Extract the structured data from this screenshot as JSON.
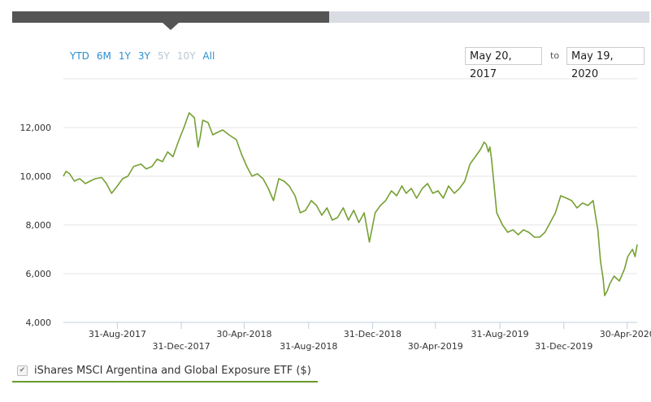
{
  "range_buttons": [
    {
      "label": "YTD",
      "enabled": true
    },
    {
      "label": "6M",
      "enabled": true
    },
    {
      "label": "1Y",
      "enabled": true
    },
    {
      "label": "3Y",
      "enabled": true
    },
    {
      "label": "5Y",
      "enabled": false
    },
    {
      "label": "10Y",
      "enabled": false
    },
    {
      "label": "All",
      "enabled": true
    }
  ],
  "date_range": {
    "from": "May 20, 2017",
    "to_label": "to",
    "to": "May 19, 2020"
  },
  "legend": {
    "label": "iShares MSCI Argentina and Global Exposure ETF ($)",
    "checked": true
  },
  "colors": {
    "line": "#76a034",
    "grid": "#e6e6e6",
    "axis": "#c0d0e0",
    "active_tab": "#555555",
    "inactive_tab": "#d9dce3"
  },
  "chart_data": {
    "type": "line",
    "title": "",
    "xlabel": "",
    "ylabel": "",
    "ylim": [
      4000,
      13000
    ],
    "y_ticks": [
      {
        "value": 4000,
        "label": "4,000"
      },
      {
        "value": 6000,
        "label": "6,000"
      },
      {
        "value": 8000,
        "label": "8,000"
      },
      {
        "value": 10000,
        "label": "10,000"
      },
      {
        "value": 12000,
        "label": "12,000"
      }
    ],
    "x_range": [
      "2017-05-20",
      "2020-05-19"
    ],
    "x_ticks": [
      {
        "date": "2017-08-31",
        "label": "31-Aug-2017",
        "row": 1
      },
      {
        "date": "2017-12-31",
        "label": "31-Dec-2017",
        "row": 2
      },
      {
        "date": "2018-04-30",
        "label": "30-Apr-2018",
        "row": 1
      },
      {
        "date": "2018-08-31",
        "label": "31-Aug-2018",
        "row": 2
      },
      {
        "date": "2018-12-31",
        "label": "31-Dec-2018",
        "row": 1
      },
      {
        "date": "2019-04-30",
        "label": "30-Apr-2019",
        "row": 2
      },
      {
        "date": "2019-08-31",
        "label": "31-Aug-2019",
        "row": 1
      },
      {
        "date": "2019-12-31",
        "label": "31-Dec-2019",
        "row": 2
      },
      {
        "date": "2020-04-30",
        "label": "30-Apr-2020",
        "row": 1
      }
    ],
    "grid": true,
    "legend_position": "bottom-left",
    "series": [
      {
        "x": [
          "2017-05-20",
          "2017-05-25",
          "2017-06-01",
          "2017-06-10",
          "2017-06-20",
          "2017-07-01",
          "2017-07-10",
          "2017-07-20",
          "2017-08-01",
          "2017-08-10",
          "2017-08-20",
          "2017-08-31",
          "2017-09-10",
          "2017-09-20",
          "2017-10-01",
          "2017-10-15",
          "2017-10-25",
          "2017-11-05",
          "2017-11-15",
          "2017-11-25",
          "2017-12-05",
          "2017-12-15",
          "2017-12-25",
          "2018-01-05",
          "2018-01-15",
          "2018-01-25",
          "2018-02-01",
          "2018-02-05",
          "2018-02-10",
          "2018-02-20",
          "2018-03-01",
          "2018-03-10",
          "2018-03-20",
          "2018-04-01",
          "2018-04-15",
          "2018-04-25",
          "2018-05-05",
          "2018-05-15",
          "2018-05-25",
          "2018-06-05",
          "2018-06-15",
          "2018-06-25",
          "2018-07-05",
          "2018-07-15",
          "2018-07-25",
          "2018-08-05",
          "2018-08-15",
          "2018-08-25",
          "2018-09-05",
          "2018-09-15",
          "2018-09-25",
          "2018-10-05",
          "2018-10-15",
          "2018-10-25",
          "2018-11-05",
          "2018-11-15",
          "2018-11-25",
          "2018-12-05",
          "2018-12-15",
          "2018-12-25",
          "2019-01-05",
          "2019-01-15",
          "2019-01-25",
          "2019-02-05",
          "2019-02-15",
          "2019-02-25",
          "2019-03-05",
          "2019-03-15",
          "2019-03-25",
          "2019-04-05",
          "2019-04-15",
          "2019-04-25",
          "2019-05-05",
          "2019-05-15",
          "2019-05-25",
          "2019-06-05",
          "2019-06-15",
          "2019-06-25",
          "2019-07-05",
          "2019-07-15",
          "2019-07-25",
          "2019-08-01",
          "2019-08-05",
          "2019-08-09",
          "2019-08-12",
          "2019-08-15",
          "2019-08-25",
          "2019-09-05",
          "2019-09-15",
          "2019-09-25",
          "2019-10-05",
          "2019-10-15",
          "2019-10-25",
          "2019-11-05",
          "2019-11-15",
          "2019-11-25",
          "2019-12-05",
          "2019-12-15",
          "2019-12-25",
          "2020-01-05",
          "2020-01-15",
          "2020-01-25",
          "2020-02-05",
          "2020-02-15",
          "2020-02-25",
          "2020-03-01",
          "2020-03-05",
          "2020-03-10",
          "2020-03-15",
          "2020-03-18",
          "2020-03-23",
          "2020-03-28",
          "2020-04-05",
          "2020-04-15",
          "2020-04-25",
          "2020-05-01",
          "2020-05-10",
          "2020-05-15",
          "2020-05-19"
        ],
        "values": [
          10000,
          10200,
          10100,
          9800,
          9900,
          9700,
          9800,
          9900,
          9950,
          9700,
          9300,
          9600,
          9900,
          10000,
          10400,
          10500,
          10300,
          10400,
          10700,
          10600,
          11000,
          10800,
          11400,
          12000,
          12600,
          12400,
          11200,
          11600,
          12300,
          12200,
          11700,
          11800,
          11900,
          11700,
          11500,
          10900,
          10400,
          10000,
          10100,
          9900,
          9500,
          9000,
          9900,
          9800,
          9600,
          9200,
          8500,
          8600,
          9000,
          8800,
          8400,
          8700,
          8200,
          8300,
          8700,
          8200,
          8600,
          8100,
          8500,
          7300,
          8500,
          8800,
          9000,
          9400,
          9200,
          9600,
          9300,
          9500,
          9100,
          9500,
          9700,
          9300,
          9400,
          9100,
          9600,
          9300,
          9500,
          9800,
          10500,
          10800,
          11100,
          11400,
          11300,
          11000,
          11200,
          10700,
          8500,
          8000,
          7700,
          7800,
          7600,
          7800,
          7700,
          7500,
          7500,
          7700,
          8100,
          8500,
          9200,
          9100,
          9000,
          8700,
          8900,
          8800,
          9000,
          8300,
          7800,
          6500,
          5800,
          5100,
          5300,
          5600,
          5900,
          5700,
          6200,
          6700,
          7000,
          6700,
          7200
        ]
      }
    ]
  }
}
